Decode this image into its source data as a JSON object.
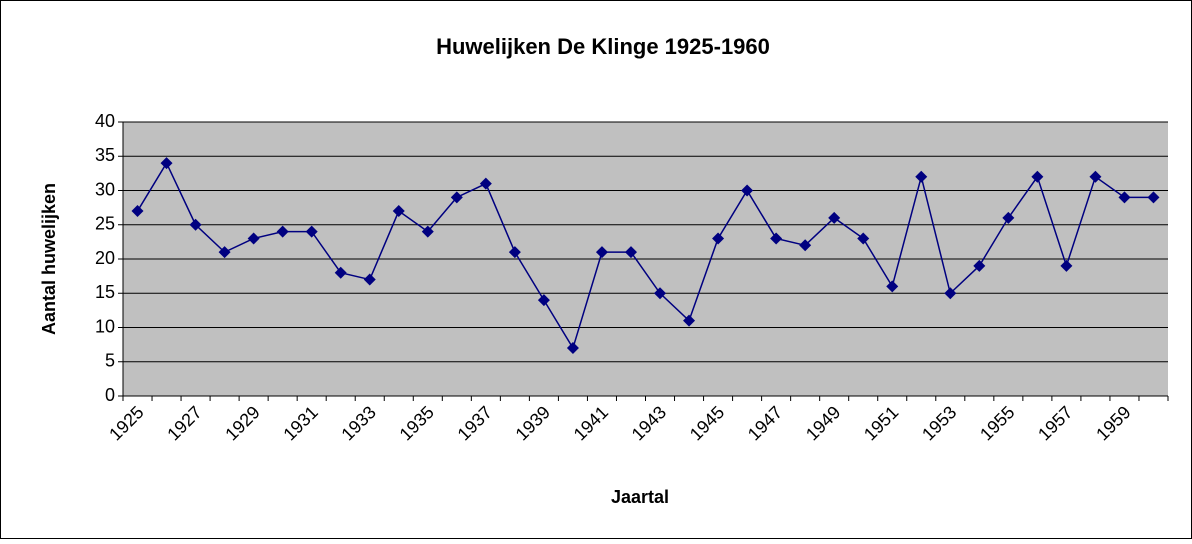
{
  "chart_data": {
    "type": "line",
    "title": "Huwelijken De Klinge 1925-1960",
    "x_label": "Jaartal",
    "y_label": "Aantal huwelijken",
    "categories": [
      "1925",
      null,
      "1927",
      null,
      "1929",
      null,
      "1931",
      null,
      "1933",
      null,
      "1935",
      null,
      "1937",
      null,
      "1939",
      null,
      "1941",
      null,
      "1943",
      null,
      "1945",
      null,
      "1947",
      null,
      "1949",
      null,
      "1951",
      null,
      "1953",
      null,
      "1955",
      null,
      "1957",
      null,
      "1959",
      null
    ],
    "values": [
      27,
      34,
      25,
      21,
      23,
      24,
      24,
      18,
      17,
      27,
      24,
      29,
      31,
      21,
      14,
      7,
      21,
      21,
      15,
      11,
      23,
      30,
      23,
      22,
      26,
      23,
      16,
      32,
      15,
      19,
      26,
      32,
      19,
      32,
      29,
      29
    ],
    "color": "#000080",
    "plot_background": "#c0c0c0",
    "ylim": [
      0,
      40
    ],
    "yticks": [
      0,
      5,
      10,
      15,
      20,
      25,
      30,
      35,
      40
    ],
    "grid": true
  }
}
